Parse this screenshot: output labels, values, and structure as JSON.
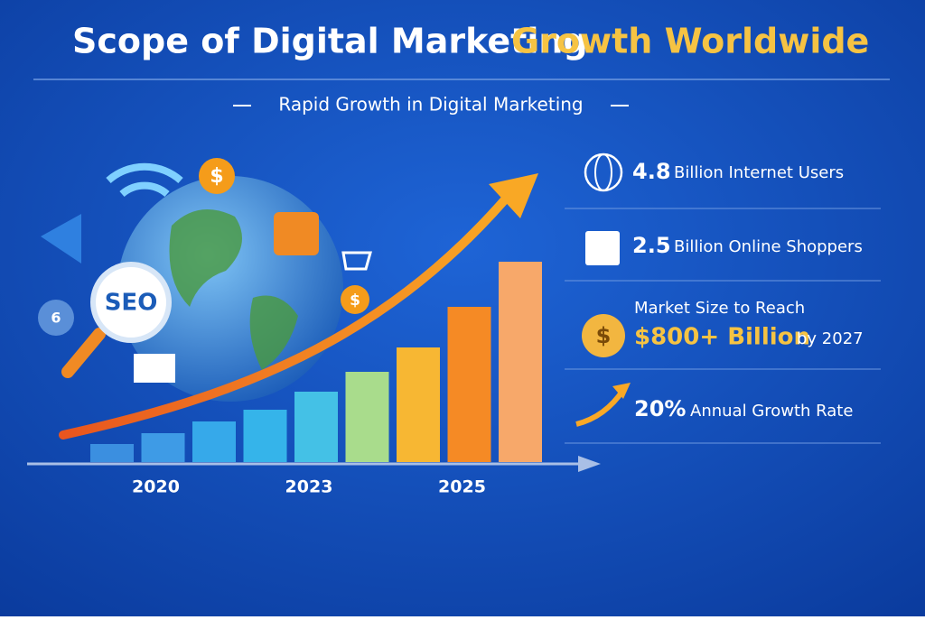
{
  "header": {
    "title_main": "Scope of Digital Marketing",
    "title_accent": "Growth Worldwide",
    "subtitle": "Rapid Growth in Digital Marketing"
  },
  "icons": {
    "seo": "SEO",
    "dollar": "$",
    "gear": "6"
  },
  "stats": [
    {
      "value": "4.8",
      "label": "Billion Internet Users"
    },
    {
      "value": "2.5",
      "label": "Billion Online Shoppers"
    },
    {
      "intro": "Market Size to Reach",
      "value": "$800+ Billion",
      "label": "by 2027"
    },
    {
      "value": "20%",
      "label": "Annual Growth Rate"
    }
  ],
  "chart_data": {
    "type": "bar",
    "categories": [
      null,
      "2020",
      null,
      null,
      "2023",
      null,
      null,
      "2025",
      null
    ],
    "values": [
      20,
      32,
      45,
      58,
      78,
      100,
      127,
      172,
      222
    ],
    "colors": [
      "#3b8fe0",
      "#3e9be6",
      "#36a9ea",
      "#35b4ea",
      "#44c1e6",
      "#a9dc8c",
      "#f7b733",
      "#f58a25",
      "#f7a86a"
    ]
  }
}
